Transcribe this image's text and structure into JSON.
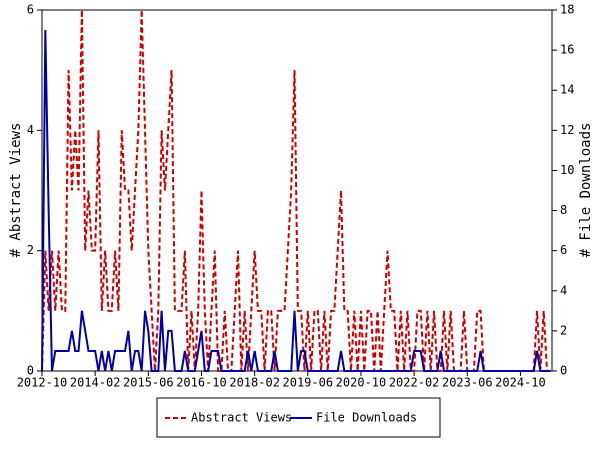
{
  "chart_data": {
    "type": "line",
    "y_label": "# Abstract Views",
    "y2_label": "# File Downloads",
    "categories": [
      "2012-10",
      null,
      null,
      null,
      null,
      null,
      null,
      null,
      null,
      null,
      null,
      null,
      null,
      null,
      null,
      null,
      "2014-02",
      null,
      null,
      null,
      null,
      null,
      null,
      null,
      null,
      null,
      null,
      null,
      null,
      null,
      null,
      null,
      "2015-06",
      null,
      null,
      null,
      null,
      null,
      null,
      null,
      null,
      null,
      null,
      null,
      null,
      null,
      null,
      null,
      "2016-10",
      null,
      null,
      null,
      null,
      null,
      null,
      null,
      null,
      null,
      null,
      null,
      null,
      null,
      null,
      null,
      "2018-02",
      null,
      null,
      null,
      null,
      null,
      null,
      null,
      null,
      null,
      null,
      null,
      null,
      null,
      null,
      null,
      "2019-06",
      null,
      null,
      null,
      null,
      null,
      null,
      null,
      null,
      null,
      null,
      null,
      null,
      null,
      null,
      null,
      "2020-10",
      null,
      null,
      null,
      null,
      null,
      null,
      null,
      null,
      null,
      null,
      null,
      null,
      null,
      null,
      null,
      "2022-02",
      null,
      null,
      null,
      null,
      null,
      null,
      null,
      null,
      null,
      null,
      null,
      null,
      null,
      null,
      null,
      "2023-06",
      null,
      null,
      null,
      null,
      null,
      null,
      null,
      null,
      null,
      null,
      null,
      null,
      null,
      null,
      null,
      "2024-10",
      null,
      null,
      null,
      null,
      null,
      null,
      null,
      null,
      null
    ],
    "series": [
      {
        "name": "Abstract Views",
        "color": "#cc0000",
        "dash": true,
        "values": [
          0,
          2,
          1,
          2,
          1,
          2,
          1,
          1,
          5,
          3,
          4,
          3,
          6,
          2,
          3,
          2,
          2,
          4,
          1,
          2,
          1,
          1,
          2,
          1,
          4,
          3,
          3,
          2,
          3,
          4,
          6,
          4,
          2,
          1,
          0,
          1,
          4,
          3,
          4,
          5,
          1,
          1,
          1,
          2,
          0,
          1,
          0,
          1,
          3,
          1,
          0,
          1,
          2,
          0,
          0,
          1,
          0,
          0,
          1,
          2,
          0,
          1,
          0,
          1,
          2,
          1,
          1,
          0,
          1,
          1,
          0,
          1,
          1,
          1,
          2,
          3,
          5,
          1,
          1,
          0,
          1,
          0,
          1,
          1,
          0,
          1,
          0,
          1,
          1,
          2,
          3,
          1,
          1,
          0,
          1,
          0,
          1,
          0,
          1,
          1,
          0,
          1,
          0,
          1,
          2,
          1,
          1,
          0,
          1,
          0,
          1,
          0,
          0,
          1,
          1,
          0,
          1,
          0,
          1,
          0,
          0,
          1,
          0,
          1,
          0,
          0,
          0,
          1,
          0,
          0,
          0,
          1,
          1,
          0,
          0,
          0,
          0,
          0,
          0,
          0,
          0,
          0,
          0,
          0,
          0,
          0,
          0,
          0,
          0,
          1,
          0,
          1,
          0,
          0
        ]
      },
      {
        "name": "File Downloads",
        "color": "#0000aa",
        "axis": "y2",
        "values": [
          0,
          17,
          8,
          0,
          1,
          1,
          1,
          1,
          1,
          2,
          1,
          1,
          3,
          2,
          1,
          1,
          1,
          0,
          1,
          0,
          1,
          0,
          1,
          1,
          1,
          1,
          2,
          0,
          1,
          1,
          0,
          3,
          2,
          0,
          0,
          0,
          3,
          0,
          2,
          2,
          0,
          0,
          0,
          1,
          0,
          0,
          0,
          1,
          2,
          0,
          0,
          1,
          1,
          1,
          0,
          0,
          0,
          0,
          0,
          0,
          0,
          0,
          1,
          0,
          1,
          0,
          0,
          0,
          0,
          0,
          1,
          0,
          0,
          0,
          0,
          0,
          3,
          0,
          1,
          1,
          0,
          0,
          0,
          0,
          0,
          0,
          0,
          0,
          0,
          0,
          1,
          0,
          0,
          0,
          0,
          0,
          0,
          0,
          0,
          0,
          0,
          0,
          0,
          0,
          0,
          0,
          0,
          0,
          0,
          0,
          0,
          0,
          1,
          1,
          1,
          0,
          0,
          0,
          0,
          0,
          1,
          0,
          0,
          0,
          0,
          0,
          0,
          0,
          0,
          0,
          0,
          0,
          1,
          0,
          0,
          0,
          0,
          0,
          0,
          0,
          0,
          0,
          0,
          0,
          0,
          0,
          0,
          0,
          0,
          1,
          0,
          0,
          0,
          0
        ]
      }
    ],
    "ylim": [
      0,
      6
    ],
    "yticks": [
      0,
      2,
      4,
      6
    ],
    "y2lim": [
      0,
      18
    ],
    "y2ticks": [
      0,
      2,
      4,
      6,
      8,
      10,
      12,
      14,
      16,
      18
    ],
    "legend": "bottom"
  }
}
